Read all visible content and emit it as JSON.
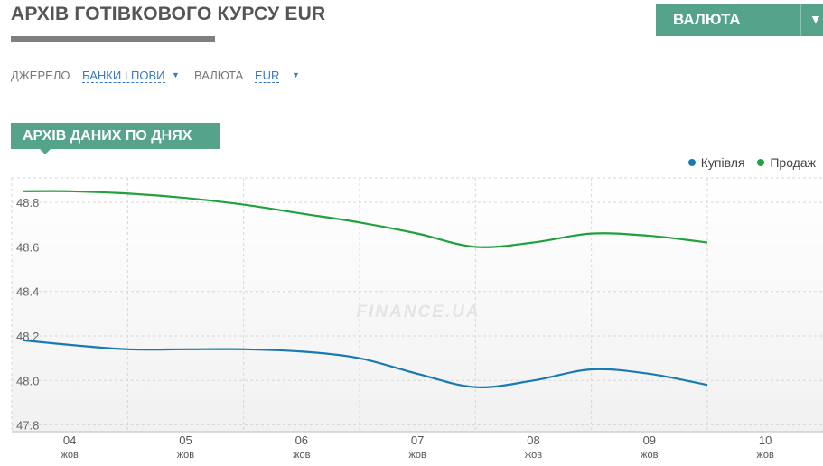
{
  "page": {
    "title": "АРХІВ ГОТІВКОВОГО КУРСУ EUR",
    "currency_button": "ВАЛЮТА",
    "currency_button_arrow": "▼"
  },
  "filters": {
    "source_label": "ДЖЕРЕЛО",
    "source_value": "БАНКИ І ПОВИ",
    "currency_label": "ВАЛЮТА",
    "currency_value": "EUR",
    "caret": "▼"
  },
  "section": {
    "title": "АРХІВ ДАНИХ ПО ДНЯХ"
  },
  "watermark": "FINANCE.UA",
  "colors": {
    "buy": "#1a7ab0",
    "sell": "#1fa13c",
    "accent": "#55a38b"
  },
  "chart_data": {
    "type": "line",
    "categories": [
      "04",
      "05",
      "06",
      "07",
      "08",
      "09",
      "10"
    ],
    "category_sublabel": "жов",
    "y_ticks": [
      "47.8",
      "48.0",
      "48.2",
      "48.4",
      "48.6",
      "48.8"
    ],
    "ylim": [
      47.77,
      48.91
    ],
    "grid": true,
    "legend_position": "top-right",
    "series": [
      {
        "name": "Купівля",
        "x": [
          3.6,
          4.0,
          4.5,
          5.0,
          5.5,
          6.0,
          6.5,
          7.0,
          7.5,
          8.0,
          8.5,
          9.0,
          9.5
        ],
        "values": [
          48.18,
          48.16,
          48.14,
          48.14,
          48.14,
          48.13,
          48.1,
          48.03,
          47.97,
          48.0,
          48.05,
          48.03,
          47.98
        ]
      },
      {
        "name": "Продаж",
        "x": [
          3.6,
          4.0,
          4.5,
          5.0,
          5.5,
          6.0,
          6.5,
          7.0,
          7.5,
          8.0,
          8.5,
          9.0,
          9.5
        ],
        "values": [
          48.85,
          48.85,
          48.84,
          48.82,
          48.79,
          48.75,
          48.71,
          48.66,
          48.6,
          48.62,
          48.66,
          48.65,
          48.62
        ]
      }
    ]
  }
}
